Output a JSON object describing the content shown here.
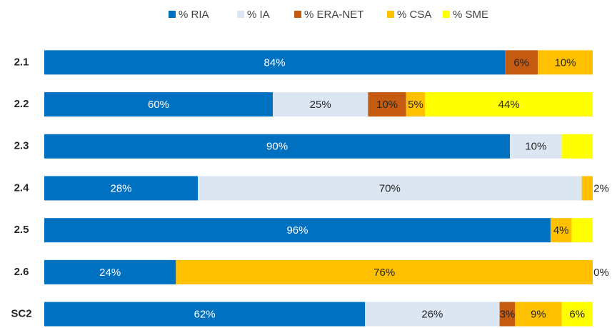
{
  "chart_data": {
    "type": "bar",
    "orientation": "horizontal",
    "stacked": true,
    "normalized": true,
    "categories": [
      "2.1",
      "2.2",
      "2.3",
      "2.4",
      "2.5",
      "2.6",
      "SC2"
    ],
    "series": [
      {
        "name": "% RIA",
        "color": "#0070c0",
        "values": [
          84,
          60,
          90,
          28,
          96,
          24,
          62
        ],
        "value_labels": [
          "84%",
          "60%",
          "90%",
          "28%",
          "96%",
          "24%",
          "62%"
        ]
      },
      {
        "name": "% IA",
        "color": "#dce6f2",
        "values": [
          0,
          25,
          10,
          70,
          0,
          0,
          26
        ],
        "value_labels": [
          null,
          "25%",
          "10%",
          "70%",
          null,
          null,
          "26%"
        ]
      },
      {
        "name": "% ERA-NET",
        "color": "#c55a11",
        "values": [
          6,
          10,
          0,
          0,
          0,
          0,
          3
        ],
        "value_labels": [
          "6%",
          "10%",
          null,
          null,
          null,
          null,
          "3%"
        ]
      },
      {
        "name": "% CSA",
        "color": "#ffc000",
        "values": [
          10,
          5,
          0,
          2,
          4,
          76,
          9
        ],
        "value_labels": [
          "10%",
          "5%",
          null,
          "2%",
          "4%",
          "76%",
          "9%"
        ]
      },
      {
        "name": "% SME",
        "color": "#ffff00",
        "values": [
          0,
          44,
          6,
          0,
          4,
          0,
          6
        ],
        "value_labels": [
          null,
          "44%",
          null,
          null,
          null,
          "0%",
          "6%"
        ]
      }
    ],
    "legend": "top"
  }
}
